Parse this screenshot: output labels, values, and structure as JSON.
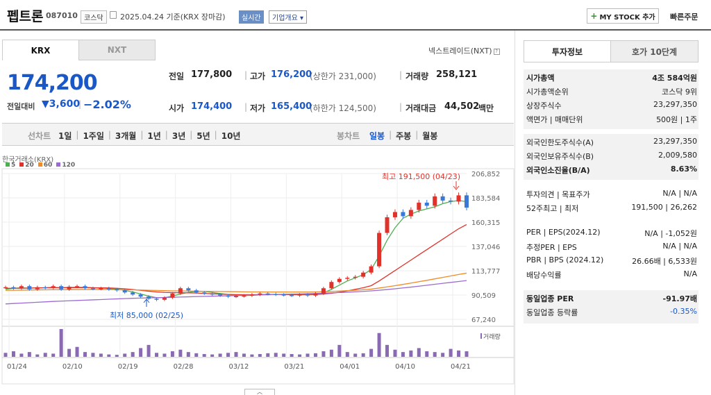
{
  "header": {
    "name": "펩트론",
    "code": "087010",
    "market": "코스닥",
    "date_basis": "2025.04.24  기준(KRX 장마감)",
    "realtime": "실시간",
    "company_overview": "기업개요",
    "my_stock": "MY STOCK 추가",
    "quick_order": "빠른주문"
  },
  "exchange_tabs": [
    "KRX",
    "NXT"
  ],
  "nextrade_label": "넥스트레이드(NXT)",
  "quote": {
    "price": "174,200",
    "change_label": "전일대비",
    "change": "3,600",
    "change_pct": "−2.02%",
    "prev_close_label": "전일",
    "prev_close": "177,800",
    "open_label": "시가",
    "open": "174,400",
    "high_label": "고가",
    "high": "176,200",
    "upper_limit": "(상한가 231,000)",
    "low_label": "저가",
    "low": "165,400",
    "lower_limit": "(하한가 124,500)",
    "volume_label": "거래량",
    "volume": "258,121",
    "amount_label": "거래대금",
    "amount": "44,502",
    "amount_unit": "백만"
  },
  "toolbar": {
    "line_chart": "선차트",
    "periods": [
      "1일",
      "1주일",
      "3개월",
      "1년",
      "3년",
      "5년",
      "10년"
    ],
    "candle_chart": "봉차트",
    "candle_periods": [
      "일봉",
      "주봉",
      "월봉"
    ]
  },
  "chart_data": {
    "type": "line",
    "source": "한국거래소(KRX)",
    "legend": [
      "5",
      "20",
      "60",
      "120"
    ],
    "ma_colors": [
      "#4caf50",
      "#e0322b",
      "#f08a24",
      "#9c6ad0"
    ],
    "y_ticks": [
      206852,
      183584,
      160315,
      137046,
      113777,
      90509,
      67240
    ],
    "ylim": [
      67240,
      206852
    ],
    "x_tick_labels": [
      "01/24",
      "02/10",
      "02/19",
      "02/28",
      "03/12",
      "03/21",
      "04/01",
      "04/10",
      "04/21"
    ],
    "high_annotation": "최고 191,500 (04/23)",
    "low_annotation": "최저 85,000 (02/25)",
    "volume_label": "거래량",
    "close_approx": [
      98000,
      97000,
      99000,
      96000,
      98000,
      97500,
      99000,
      96000,
      98500,
      99000,
      97000,
      96500,
      97000,
      96000,
      95000,
      93000,
      91000,
      89000,
      87000,
      86000,
      88000,
      92000,
      97000,
      95000,
      93000,
      92000,
      91000,
      90000,
      89000,
      89500,
      90000,
      91000,
      92000,
      91500,
      91000,
      90500,
      90000,
      91000,
      90000,
      92000,
      97000,
      103000,
      106000,
      107000,
      108000,
      112000,
      118000,
      150000,
      165000,
      170000,
      166000,
      172000,
      179000,
      176000,
      185000,
      181000,
      180000,
      186000,
      174200
    ],
    "ma5_approx": [
      96000,
      97000,
      97500,
      97000,
      97500,
      97500,
      98000,
      97500,
      97800,
      98000,
      97800,
      97500,
      97200,
      96800,
      96200,
      95000,
      93500,
      91500,
      89500,
      88000,
      88000,
      89500,
      91500,
      93000,
      94000,
      94000,
      93000,
      92000,
      91000,
      90200,
      90000,
      90200,
      90800,
      91000,
      91000,
      91000,
      90800,
      90800,
      90800,
      91000,
      92500,
      96000,
      100000,
      104000,
      107000,
      110000,
      115000,
      128000,
      143000,
      155000,
      164000,
      168000,
      171000,
      173000,
      175000,
      178000,
      180000,
      181000,
      180000
    ],
    "ma20_approx": [
      97000,
      97000,
      97000,
      97200,
      97300,
      97400,
      97500,
      97500,
      97600,
      97600,
      97600,
      97500,
      97400,
      97300,
      97000,
      96500,
      95800,
      95000,
      94200,
      93500,
      93000,
      92800,
      92700,
      92600,
      92400,
      92000,
      91700,
      91400,
      91100,
      90900,
      90800,
      90800,
      90900,
      91000,
      91000,
      91000,
      91000,
      91000,
      91000,
      91100,
      91500,
      92200,
      93200,
      94500,
      96000,
      97500,
      99500,
      104000,
      109000,
      114000,
      119000,
      124000,
      129000,
      134000,
      139000,
      144000,
      149000,
      154000,
      158000
    ],
    "ma60_approx": [
      95000,
      95100,
      95200,
      95300,
      95400,
      95500,
      95600,
      95600,
      95700,
      95700,
      95800,
      95800,
      95800,
      95800,
      95700,
      95600,
      95500,
      95300,
      95100,
      94900,
      94700,
      94500,
      94400,
      94300,
      94200,
      94100,
      94000,
      93900,
      93800,
      93700,
      93600,
      93500,
      93500,
      93400,
      93400,
      93400,
      93400,
      93400,
      93400,
      93500,
      93700,
      94000,
      94300,
      94700,
      95100,
      95600,
      96200,
      97200,
      98300,
      99500,
      100700,
      102000,
      103300,
      104600,
      106000,
      107400,
      108800,
      110200,
      111500
    ],
    "ma120_approx": [
      82000,
      82400,
      82800,
      83200,
      83600,
      84000,
      84400,
      84700,
      85000,
      85300,
      85600,
      85900,
      86200,
      86500,
      86800,
      87100,
      87400,
      87600,
      87800,
      88000,
      88200,
      88400,
      88600,
      88800,
      89000,
      89200,
      89400,
      89600,
      89800,
      90000,
      90200,
      90400,
      90600,
      90800,
      91000,
      91200,
      91400,
      91600,
      91800,
      92000,
      92300,
      92600,
      92900,
      93200,
      93600,
      94000,
      94500,
      95100,
      95800,
      96500,
      97300,
      98100,
      99000,
      99900,
      100800,
      101700,
      102600,
      103500,
      104400
    ],
    "volume_approx": [
      10,
      14,
      8,
      12,
      6,
      10,
      8,
      70,
      20,
      25,
      12,
      10,
      8,
      6,
      5,
      8,
      12,
      22,
      30,
      10,
      8,
      14,
      18,
      12,
      9,
      7,
      6,
      8,
      10,
      12,
      8,
      6,
      7,
      9,
      10,
      8,
      7,
      6,
      8,
      9,
      14,
      18,
      30,
      12,
      8,
      9,
      20,
      60,
      30,
      18,
      12,
      16,
      22,
      14,
      12,
      10,
      20,
      16,
      14
    ]
  },
  "right_panel": {
    "tabs": [
      "투자정보",
      "호가 10단계"
    ],
    "s1": [
      {
        "k": "시가총액",
        "v": "4조 584억원"
      },
      {
        "k": "시가총액순위",
        "v": "코스닥 9위"
      },
      {
        "k": "상장주식수",
        "v": "23,297,350"
      },
      {
        "k": "액면가 | 매매단위",
        "v": "500원 | 1주"
      }
    ],
    "s2": [
      {
        "k": "외국인한도주식수(A)",
        "v": "23,297,350"
      },
      {
        "k": "외국인보유주식수(B)",
        "v": "2,009,580"
      },
      {
        "k": "외국인소진율(B/A)",
        "v": "8.63%"
      }
    ],
    "s3": [
      {
        "k": "투자의견 | 목표주가",
        "v": "N/A | N/A"
      },
      {
        "k": "52주최고 | 최저",
        "v": "191,500 | 26,262"
      }
    ],
    "s4": [
      {
        "k": "PER | EPS(2024.12)",
        "v": "N/A | -1,052원"
      },
      {
        "k": "추정PER | EPS",
        "v": "N/A | N/A"
      },
      {
        "k": "PBR | BPS (2024.12)",
        "v": "26.66배 | 6,533원"
      },
      {
        "k": "배당수익률",
        "v": "N/A"
      }
    ],
    "s5": [
      {
        "k": "동일업종 PER",
        "v": "-91.97배"
      },
      {
        "k": "동일업종 등락률",
        "v": "-0.35%"
      }
    ]
  }
}
